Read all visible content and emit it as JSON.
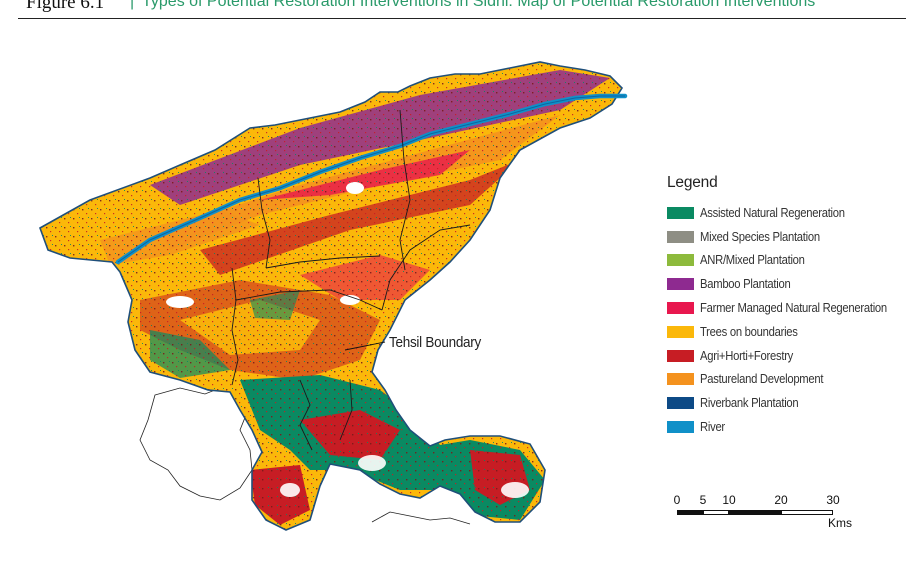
{
  "header": {
    "figure_label": "Figure 6.1",
    "separator": "|",
    "title": "Types of Potential Restoration Interventions in Sidhi: Map of Potential Restoration Interventions"
  },
  "map": {
    "callout_label": "Tehsil Boundary"
  },
  "legend": {
    "title": "Legend",
    "items": [
      {
        "label": "Assisted Natural Regeneration",
        "color": "#0a8a62"
      },
      {
        "label": "Mixed Species Plantation",
        "color": "#8e8e84"
      },
      {
        "label": "ANR/Mixed Plantation",
        "color": "#8dba3c"
      },
      {
        "label": "Bamboo Plantation",
        "color": "#8e2a90"
      },
      {
        "label": "Farmer Managed Natural Regeneration",
        "color": "#e8174e"
      },
      {
        "label": "Trees on boundaries",
        "color": "#fbb80a"
      },
      {
        "label": "Agri+Horti+Forestry",
        "color": "#c71d24"
      },
      {
        "label": "Pastureland Development",
        "color": "#f4921e"
      },
      {
        "label": "Riverbank Plantation",
        "color": "#0d4a86"
      },
      {
        "label": "River",
        "color": "#1090c8"
      }
    ]
  },
  "scale": {
    "ticks": [
      "0",
      "5",
      "10",
      "20",
      "30"
    ],
    "unit": "Kms"
  }
}
